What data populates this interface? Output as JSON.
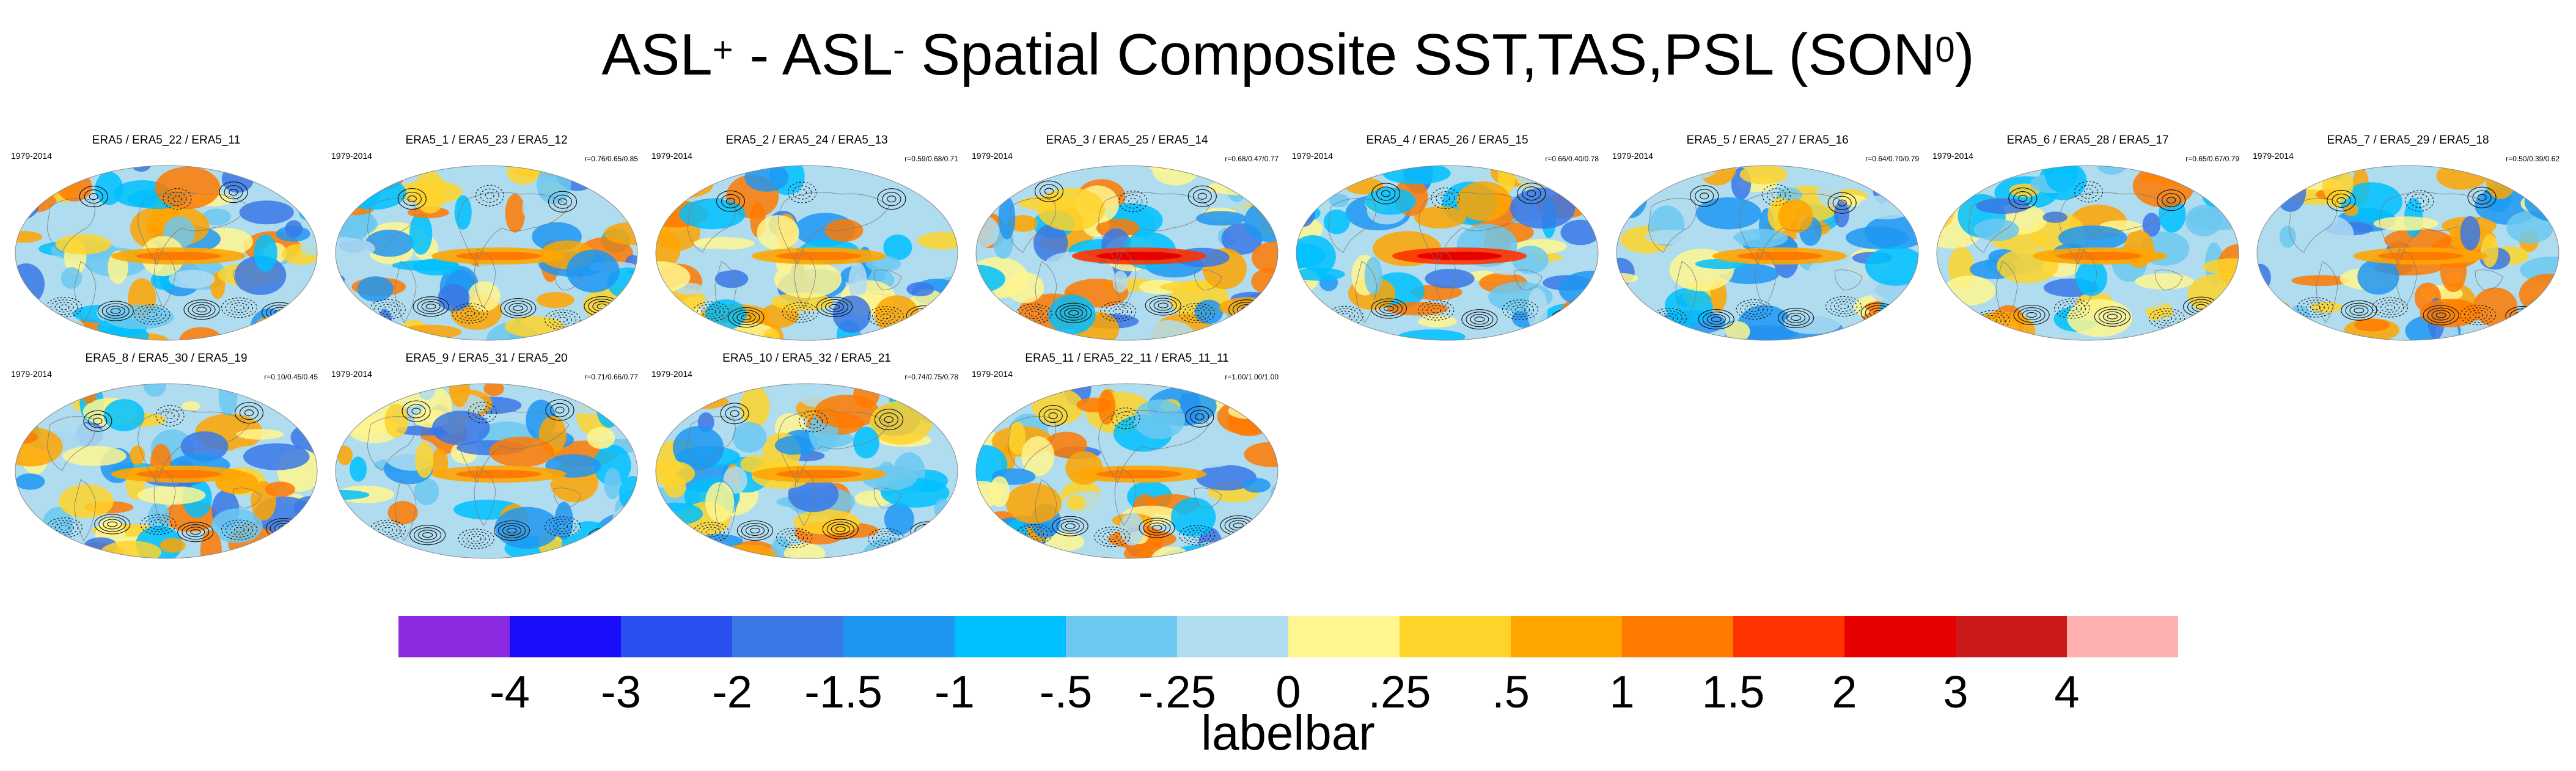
{
  "title": {
    "part1": "ASL",
    "sup1": "+",
    "part2": " - ASL",
    "sup2": "-",
    "part3": " Spatial Composite SST,TAS,PSL (SON",
    "sup3": "0",
    "part4": ")"
  },
  "panels": [
    {
      "title": "ERA5 / ERA5_22 / ERA5_11",
      "period": "1979-2014",
      "stat": ""
    },
    {
      "title": "ERA5_1 / ERA5_23 / ERA5_12",
      "period": "1979-2014",
      "stat": "r=0.76/0.65/0.85"
    },
    {
      "title": "ERA5_2 / ERA5_24 / ERA5_13",
      "period": "1979-2014",
      "stat": "r=0.59/0.68/0.71"
    },
    {
      "title": "ERA5_3 / ERA5_25 / ERA5_14",
      "period": "1979-2014",
      "stat": "r=0.68/0.47/0.77"
    },
    {
      "title": "ERA5_4 / ERA5_26 / ERA5_15",
      "period": "1979-2014",
      "stat": "r=0.66/0.40/0.78"
    },
    {
      "title": "ERA5_5 / ERA5_27 / ERA5_16",
      "period": "1979-2014",
      "stat": "r=0.64/0.70/0.79"
    },
    {
      "title": "ERA5_6 / ERA5_28 / ERA5_17",
      "period": "1979-2014",
      "stat": "r=0.65/0.67/0.79"
    },
    {
      "title": "ERA5_7 / ERA5_29 / ERA5_18",
      "period": "1979-2014",
      "stat": "r=0.50/0.39/0.62"
    },
    {
      "title": "ERA5_8 / ERA5_30 / ERA5_19",
      "period": "1979-2014",
      "stat": "r=0.10/0.45/0.45"
    },
    {
      "title": "ERA5_9 / ERA5_31 / ERA5_20",
      "period": "1979-2014",
      "stat": "r=0.71/0.66/0.77"
    },
    {
      "title": "ERA5_10 / ERA5_32 / ERA5_21",
      "period": "1979-2014",
      "stat": "r=0.74/0.75/0.78"
    },
    {
      "title": "ERA5_11 / ERA5_22_11 / ERA5_11_11",
      "period": "1979-2014",
      "stat": "r=1.00/1.00/1.00"
    }
  ],
  "chart_data": {
    "type": "heatmap",
    "title": "ASL+ - ASL- Spatial Composite SST,TAS,PSL (SON0)",
    "description_fields": [
      "SST",
      "TAS",
      "PSL"
    ],
    "projection": "global",
    "labelbar": {
      "title": "labelbar",
      "tick_labels": [
        "-4",
        "-3",
        "-2",
        "-1.5",
        "-1",
        "-.5",
        "-.25",
        "0",
        ".25",
        ".5",
        "1",
        "1.5",
        "2",
        "3",
        "4"
      ],
      "colors": [
        "#8a2be2",
        "#1a0dfa",
        "#2a4ff0",
        "#3a78e6",
        "#1e96f2",
        "#00bfff",
        "#6cc8f0",
        "#b0dcf0",
        "#fff68f",
        "#ffd42a",
        "#ffa500",
        "#ff7a00",
        "#ff3300",
        "#e60000",
        "#cc1a1a",
        "#ffb0b0"
      ]
    }
  }
}
